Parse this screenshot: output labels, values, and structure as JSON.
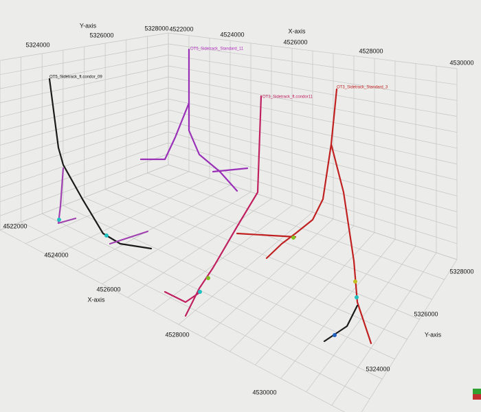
{
  "top_axes": {
    "y_title": "Y-axis",
    "y_ticks": [
      "5324000",
      "5326000",
      "5328000"
    ],
    "x_title": "X-axis",
    "x_ticks": [
      "4522000",
      "4524000",
      "4526000",
      "4528000",
      "4530000"
    ]
  },
  "front_axes": {
    "x_title": "X-axis",
    "x_ticks": [
      "4522000",
      "4524000",
      "4526000",
      "4528000",
      "4530000"
    ]
  },
  "right_axes": {
    "y_title": "Y-axis",
    "y_ticks": [
      "5328000",
      "5326000",
      "5324000"
    ]
  },
  "wells": [
    {
      "label": "OT5_Sidetrack_ft.condor_09"
    },
    {
      "label": "OT5_Sidetrack_Standard_11"
    },
    {
      "label": "OT3_Sidetrack_ft.condor11"
    },
    {
      "label": "OT3_Sidetrack_Standard_3"
    }
  ]
}
